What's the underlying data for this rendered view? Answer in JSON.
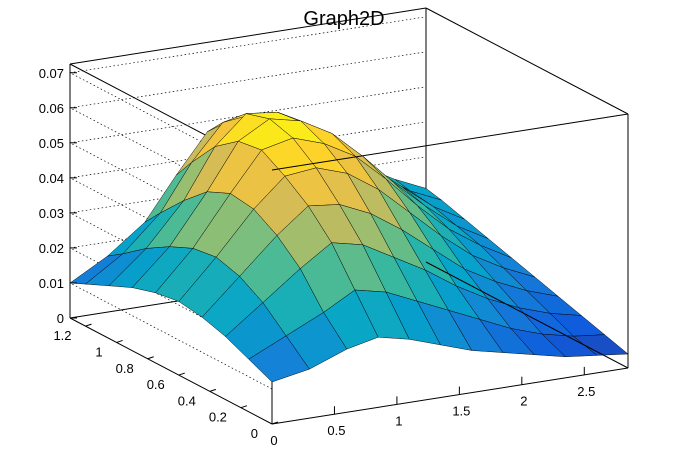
{
  "chart_data": {
    "type": "surface",
    "title": "Graph2D",
    "xlabel": "",
    "ylabel": "",
    "zlabel": "",
    "xlim": [
      0,
      2.85
    ],
    "ylim": [
      0,
      1.3
    ],
    "zlim": [
      0,
      0.0725
    ],
    "x_ticks": [
      "0",
      "0.5",
      "1",
      "1.5",
      "2",
      "2.5"
    ],
    "x_tick_values": [
      0,
      0.5,
      1,
      1.5,
      2,
      2.5
    ],
    "y_ticks": [
      "0",
      "0.2",
      "0.4",
      "0.6",
      "0.8",
      "1",
      "1.2"
    ],
    "y_tick_values": [
      0,
      0.2,
      0.4,
      0.6,
      0.8,
      1.0,
      1.2
    ],
    "z_ticks": [
      "0",
      "0.01",
      "0.02",
      "0.03",
      "0.04",
      "0.05",
      "0.06",
      "0.07"
    ],
    "z_tick_values": [
      0,
      0.01,
      0.02,
      0.03,
      0.04,
      0.05,
      0.06,
      0.07
    ],
    "grid": true,
    "palette": [
      "#352a87",
      "#0f5cdd",
      "#1481d6",
      "#06a4ca",
      "#2eb7a4",
      "#87bf77",
      "#d1bb59",
      "#fec832",
      "#f9fb0e"
    ],
    "grid_x_values": [
      0,
      0.3,
      0.6,
      0.85,
      1.1,
      1.35,
      1.6,
      1.85,
      2.1,
      2.35,
      2.6,
      2.85
    ],
    "grid_y_values": [
      0,
      0.15,
      0.3,
      0.45,
      0.6,
      0.75,
      0.9,
      1.05,
      1.2,
      1.3
    ],
    "z_values": [
      [
        0.012,
        0.014,
        0.018,
        0.02,
        0.018,
        0.015,
        0.012,
        0.01,
        0.008,
        0.006,
        0.005,
        0.004
      ],
      [
        0.015,
        0.02,
        0.025,
        0.03,
        0.028,
        0.024,
        0.02,
        0.016,
        0.012,
        0.009,
        0.007,
        0.006
      ],
      [
        0.018,
        0.026,
        0.034,
        0.04,
        0.038,
        0.033,
        0.028,
        0.022,
        0.017,
        0.013,
        0.01,
        0.008
      ],
      [
        0.02,
        0.03,
        0.04,
        0.047,
        0.046,
        0.042,
        0.036,
        0.029,
        0.022,
        0.017,
        0.013,
        0.01
      ],
      [
        0.021,
        0.032,
        0.044,
        0.052,
        0.053,
        0.05,
        0.044,
        0.036,
        0.028,
        0.021,
        0.016,
        0.012
      ],
      [
        0.02,
        0.031,
        0.045,
        0.056,
        0.058,
        0.055,
        0.05,
        0.042,
        0.033,
        0.025,
        0.019,
        0.014
      ],
      [
        0.018,
        0.028,
        0.042,
        0.055,
        0.06,
        0.058,
        0.053,
        0.045,
        0.036,
        0.028,
        0.021,
        0.016
      ],
      [
        0.015,
        0.024,
        0.036,
        0.05,
        0.058,
        0.057,
        0.052,
        0.045,
        0.037,
        0.03,
        0.023,
        0.018
      ],
      [
        0.012,
        0.019,
        0.029,
        0.042,
        0.052,
        0.053,
        0.049,
        0.043,
        0.036,
        0.03,
        0.024,
        0.02
      ],
      [
        0.01,
        0.016,
        0.024,
        0.036,
        0.047,
        0.05,
        0.047,
        0.041,
        0.035,
        0.03,
        0.025,
        0.021
      ]
    ]
  }
}
